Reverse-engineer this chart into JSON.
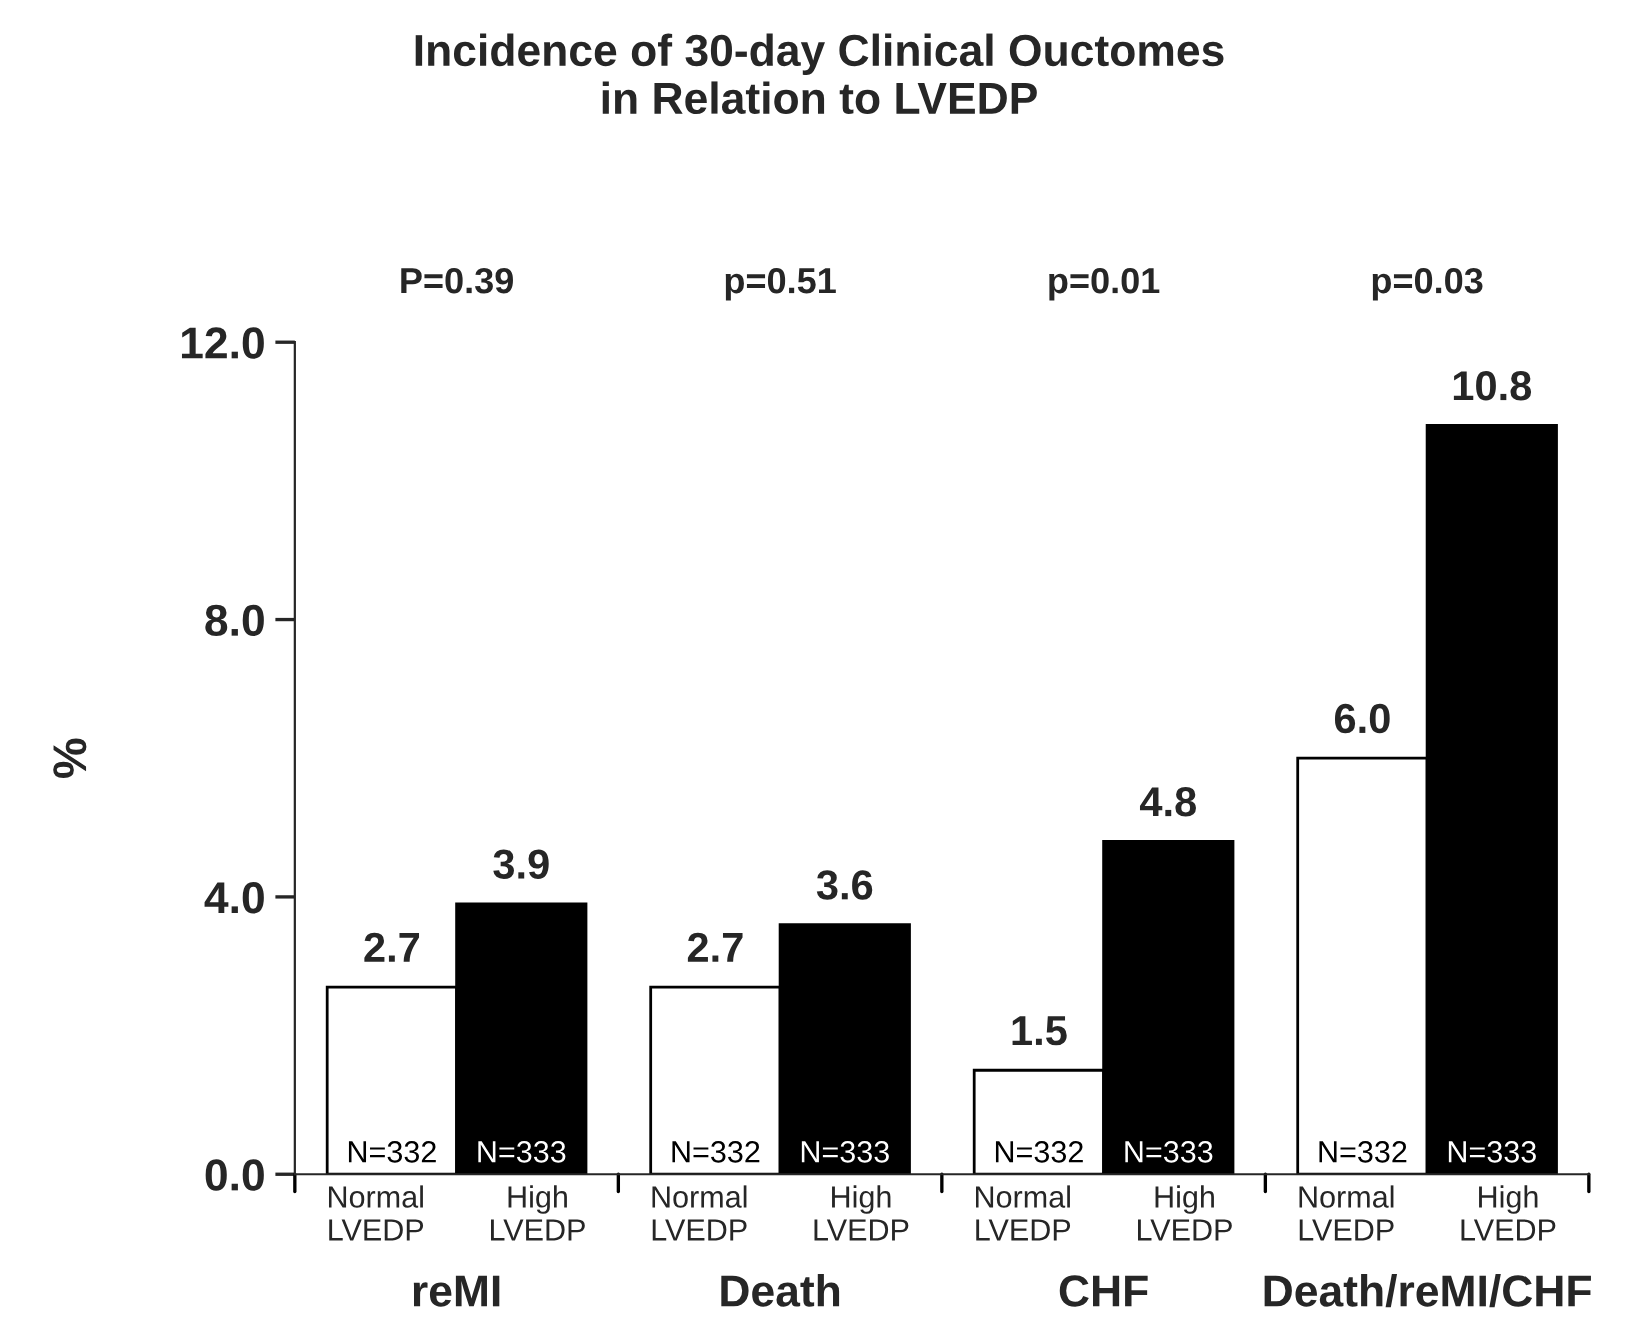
{
  "chart_data": {
    "type": "bar",
    "title": "Incidence of 30-day Clinical Ouctomes\nin Relation to LVEDP",
    "ylabel": "%",
    "categories": [
      "Normal\nLVEDP",
      "High\nLVEDP",
      "Normal\nLVEDP",
      "High\nLVEDP",
      "Normal\nLVEDP",
      "High\nLVEDP",
      "Normal\nLVEDP",
      "High\nLVEDP"
    ],
    "values": [
      2.7,
      3.9,
      2.7,
      3.6,
      1.5,
      4.8,
      6.0,
      10.8
    ],
    "colors": [
      "#ffffff",
      "#000000",
      "#ffffff",
      "#000000",
      "#ffffff",
      "#000000",
      "#ffffff",
      "#000000"
    ],
    "ylim": [
      0,
      12
    ],
    "yticks": [
      {
        "value": 0,
        "label": "0.0"
      },
      {
        "value": 4,
        "label": "4.0"
      },
      {
        "value": 8,
        "label": "8.0"
      },
      {
        "value": 12,
        "label": "12.0"
      }
    ],
    "value_labels": [
      "2.7",
      "3.9",
      "2.7",
      "3.6",
      "1.5",
      "4.8",
      "6.0",
      "10.8"
    ],
    "grid": false,
    "annotations": [
      "P=0.39",
      "p=0.51",
      "p=0.01",
      "p=0.03",
      "reMI",
      "Death",
      "CHF",
      "Death/reMI/CHF",
      "N=332",
      "N=333",
      "N=332",
      "N=333",
      "N=332",
      "N=333",
      "N=332",
      "N=333"
    ]
  }
}
